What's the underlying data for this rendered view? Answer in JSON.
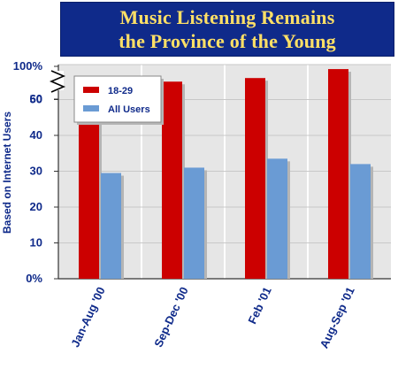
{
  "chart_data": {
    "type": "bar",
    "title": [
      "Music Listening Remains",
      "the Province of the Young"
    ],
    "ylabel": "Based on Internet Users",
    "categories": [
      "Jan-Aug '00",
      "Sep-Dec '00",
      "Feb '01",
      "Aug-Sep '01"
    ],
    "series": [
      {
        "name": "18-29",
        "color": "#cc0000",
        "values": [
          47,
          55,
          56,
          58.5
        ]
      },
      {
        "name": "All Users",
        "color": "#6a9bd4",
        "values": [
          29.5,
          31,
          33.5,
          32
        ]
      }
    ],
    "yticks": [
      "0%",
      "10",
      "20",
      "30",
      "40",
      "50",
      "60",
      "100%"
    ],
    "ylim": [
      0,
      60
    ],
    "axis_break": true,
    "legend_position": "top-left",
    "grid": true
  }
}
